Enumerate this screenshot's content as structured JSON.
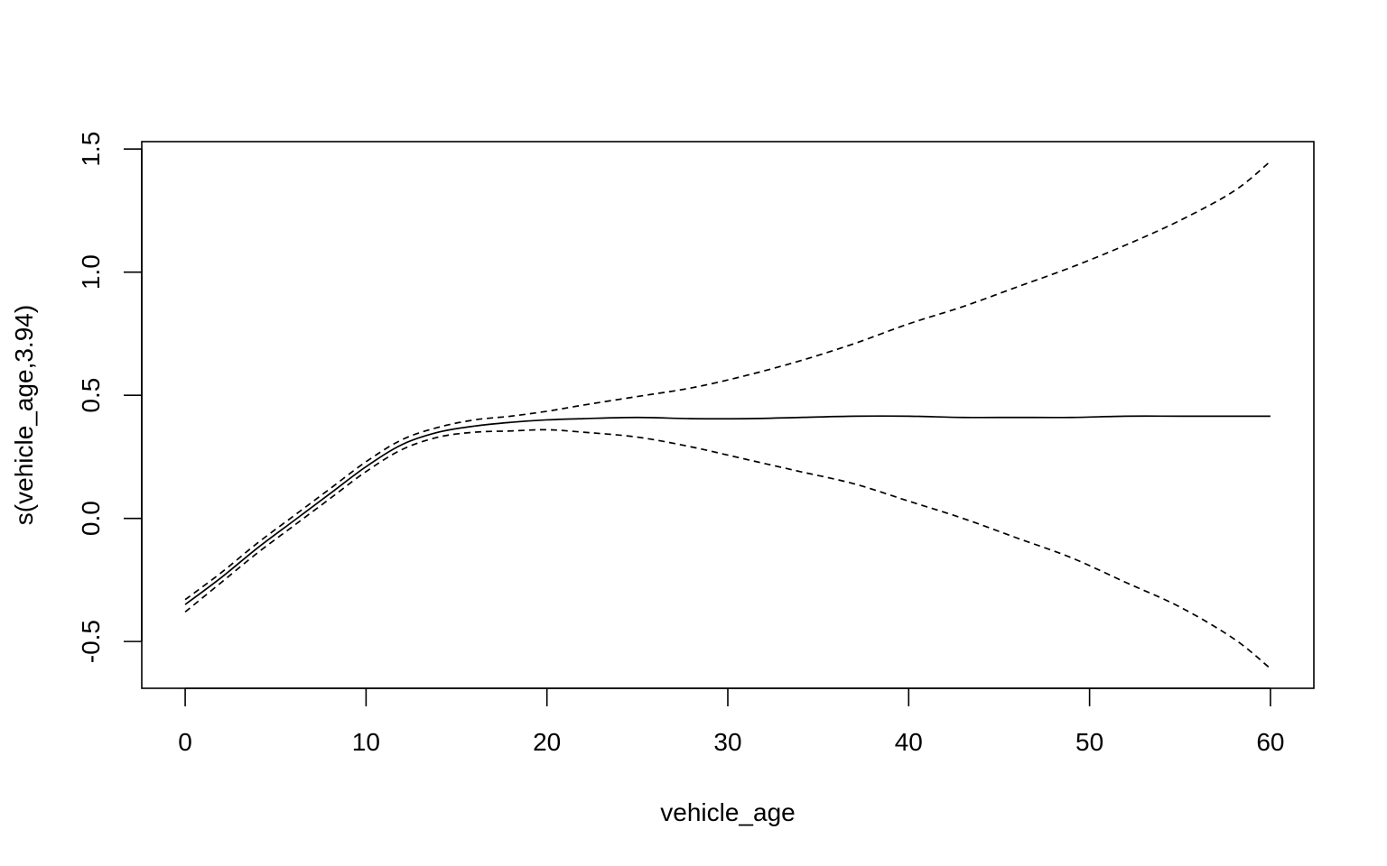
{
  "chart_data": {
    "type": "line",
    "title": "",
    "xlabel": "vehicle_age",
    "ylabel": "s(vehicle_age,3.94)",
    "xlim": [
      -2.4,
      62.4
    ],
    "ylim": [
      -0.69,
      1.53
    ],
    "xticks": [
      0,
      10,
      20,
      30,
      40,
      50,
      60
    ],
    "xtick_labels": [
      "0",
      "10",
      "20",
      "30",
      "40",
      "50",
      "60"
    ],
    "yticks": [
      -0.5,
      0.0,
      0.5,
      1.0,
      1.5
    ],
    "ytick_labels": [
      "-0.5",
      "0.0",
      "0.5",
      "1.0",
      "1.5"
    ],
    "grid": false,
    "legend": "none",
    "x": [
      0,
      2,
      4,
      6,
      8,
      10,
      12,
      14,
      16,
      18,
      20,
      22,
      25,
      28,
      31,
      34,
      37,
      40,
      43,
      46,
      49,
      52,
      55,
      58,
      60
    ],
    "series": [
      {
        "style": "solid",
        "values": [
          -0.35,
          -0.24,
          -0.12,
          -0.01,
          0.1,
          0.21,
          0.3,
          0.35,
          0.375,
          0.39,
          0.4,
          0.405,
          0.41,
          0.405,
          0.405,
          0.41,
          0.415,
          0.415,
          0.41,
          0.41,
          0.41,
          0.415,
          0.415,
          0.415,
          0.415
        ]
      },
      {
        "style": "dashed",
        "values": [
          -0.33,
          -0.22,
          -0.1,
          0.01,
          0.12,
          0.23,
          0.32,
          0.37,
          0.4,
          0.415,
          0.435,
          0.46,
          0.495,
          0.53,
          0.58,
          0.64,
          0.71,
          0.79,
          0.86,
          0.94,
          1.02,
          1.11,
          1.21,
          1.33,
          1.45
        ]
      },
      {
        "style": "dashed",
        "values": [
          -0.38,
          -0.26,
          -0.14,
          -0.03,
          0.08,
          0.19,
          0.28,
          0.33,
          0.35,
          0.355,
          0.36,
          0.35,
          0.33,
          0.29,
          0.24,
          0.19,
          0.14,
          0.07,
          0.0,
          -0.08,
          -0.16,
          -0.26,
          -0.36,
          -0.49,
          -0.61
        ]
      }
    ]
  }
}
